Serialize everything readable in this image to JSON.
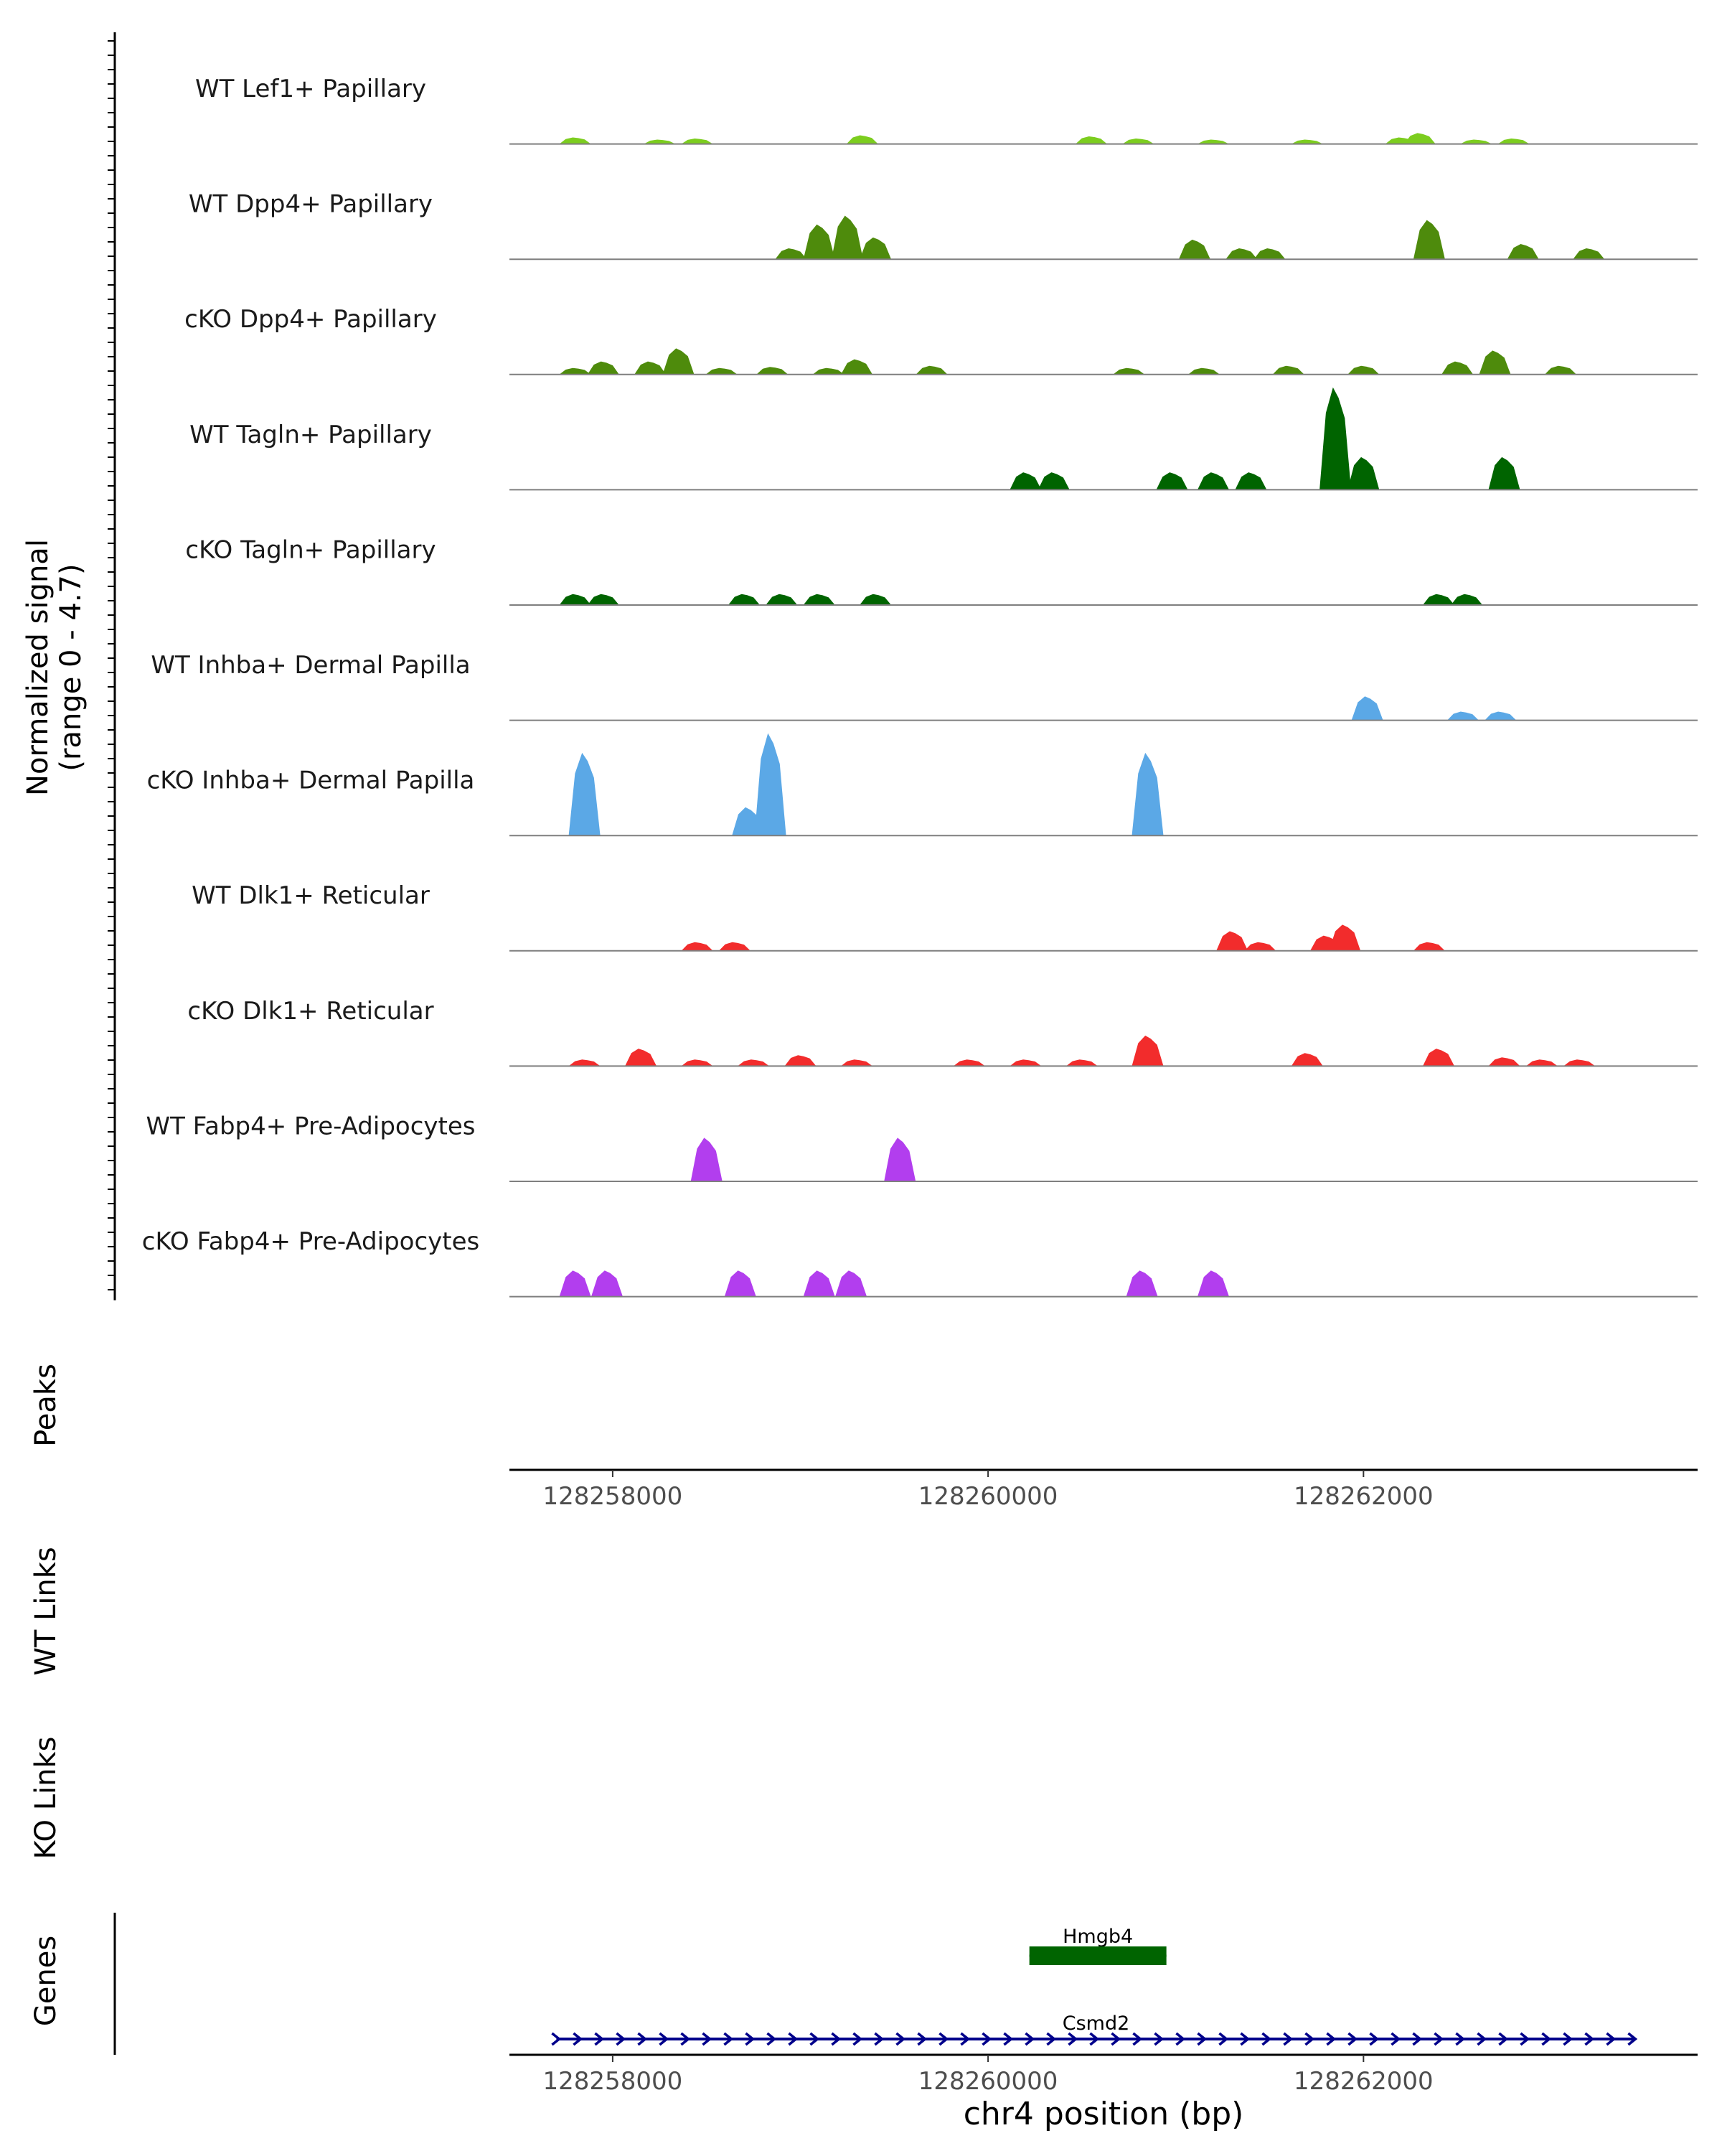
{
  "chart_data": {
    "type": "area",
    "title": "",
    "signal_axis_label": "Normalized signal",
    "signal_axis_range_label": "(range 0 - 4.7)",
    "signal_range": [
      0,
      4.7
    ],
    "xlabel": "chr4 position (bp)",
    "xlim": [
      128257450,
      128263780
    ],
    "x_ticks": [
      "128258000",
      "128260000",
      "128262000"
    ],
    "x_tick_values": [
      128258000,
      128260000,
      128262000
    ],
    "panel_labels": {
      "peaks": "Peaks",
      "wt_links": "WT Links",
      "ko_links": "KO Links",
      "genes": "Genes"
    },
    "tracks": [
      {
        "name": "WT Lef1+ Papillary",
        "color": "#7CCD1F",
        "peaks": [
          [
            128257800,
            0.3
          ],
          [
            128258250,
            0.2
          ],
          [
            128258450,
            0.25
          ],
          [
            128259330,
            0.4
          ],
          [
            128260550,
            0.35
          ],
          [
            128260800,
            0.25
          ],
          [
            128261200,
            0.2
          ],
          [
            128261700,
            0.2
          ],
          [
            128262200,
            0.3
          ],
          [
            128262300,
            0.5
          ],
          [
            128262600,
            0.2
          ],
          [
            128262800,
            0.25
          ]
        ]
      },
      {
        "name": "WT Dpp4+ Papillary",
        "color": "#4E8B0C",
        "peaks": [
          [
            128258950,
            0.5
          ],
          [
            128259100,
            1.6
          ],
          [
            128259250,
            2.0
          ],
          [
            128259400,
            1.0
          ],
          [
            128261100,
            0.9
          ],
          [
            128261350,
            0.5
          ],
          [
            128261500,
            0.5
          ],
          [
            128262350,
            1.8
          ],
          [
            128262850,
            0.7
          ],
          [
            128263200,
            0.5
          ]
        ]
      },
      {
        "name": "cKO Dpp4+ Papillary",
        "color": "#4E8B0C",
        "peaks": [
          [
            128257800,
            0.3
          ],
          [
            128257950,
            0.6
          ],
          [
            128258200,
            0.6
          ],
          [
            128258350,
            1.2
          ],
          [
            128258580,
            0.3
          ],
          [
            128258850,
            0.35
          ],
          [
            128259150,
            0.3
          ],
          [
            128259300,
            0.7
          ],
          [
            128259700,
            0.4
          ],
          [
            128260750,
            0.3
          ],
          [
            128261150,
            0.3
          ],
          [
            128261600,
            0.4
          ],
          [
            128262000,
            0.4
          ],
          [
            128262500,
            0.6
          ],
          [
            128262700,
            1.1
          ],
          [
            128263050,
            0.4
          ]
        ]
      },
      {
        "name": "WT Tagln+ Papillary",
        "color": "#006400",
        "peaks": [
          [
            128260200,
            0.8
          ],
          [
            128260350,
            0.8
          ],
          [
            128260980,
            0.8
          ],
          [
            128261200,
            0.8
          ],
          [
            128261400,
            0.8
          ],
          [
            128261850,
            4.7
          ],
          [
            128262000,
            1.5
          ],
          [
            128262750,
            1.5
          ]
        ]
      },
      {
        "name": "cKO Tagln+ Papillary",
        "color": "#006400",
        "peaks": [
          [
            128257800,
            0.5
          ],
          [
            128257950,
            0.5
          ],
          [
            128258700,
            0.5
          ],
          [
            128258900,
            0.5
          ],
          [
            128259100,
            0.5
          ],
          [
            128259400,
            0.5
          ],
          [
            128262400,
            0.5
          ],
          [
            128262550,
            0.5
          ]
        ]
      },
      {
        "name": "WT Inhba+ Dermal Papilla",
        "color": "#5BA8E6",
        "peaks": [
          [
            128262020,
            1.1
          ],
          [
            128262530,
            0.4
          ],
          [
            128262730,
            0.4
          ]
        ]
      },
      {
        "name": "cKO Inhba+ Dermal Papilla",
        "color": "#5BA8E6",
        "peaks": [
          [
            128257850,
            3.8
          ],
          [
            128258720,
            1.3
          ],
          [
            128258840,
            4.7
          ],
          [
            128260850,
            3.8
          ]
        ]
      },
      {
        "name": "WT Dlk1+ Reticular",
        "color": "#F22C2C",
        "peaks": [
          [
            128258450,
            0.4
          ],
          [
            128258650,
            0.4
          ],
          [
            128261300,
            0.9
          ],
          [
            128261450,
            0.4
          ],
          [
            128261800,
            0.7
          ],
          [
            128261900,
            1.2
          ],
          [
            128262350,
            0.4
          ]
        ]
      },
      {
        "name": "cKO Dlk1+ Reticular",
        "color": "#F22C2C",
        "peaks": [
          [
            128257850,
            0.3
          ],
          [
            128258150,
            0.8
          ],
          [
            128258450,
            0.3
          ],
          [
            128258750,
            0.3
          ],
          [
            128259000,
            0.5
          ],
          [
            128259300,
            0.3
          ],
          [
            128259900,
            0.3
          ],
          [
            128260200,
            0.3
          ],
          [
            128260500,
            0.3
          ],
          [
            128260850,
            1.4
          ],
          [
            128261700,
            0.6
          ],
          [
            128262400,
            0.8
          ],
          [
            128262750,
            0.4
          ],
          [
            128262950,
            0.3
          ],
          [
            128263150,
            0.3
          ]
        ]
      },
      {
        "name": "WT Fabp4+ Pre-Adipocytes",
        "color": "#B23EEE",
        "peaks": [
          [
            128258500,
            2.0
          ],
          [
            128259530,
            2.0
          ]
        ]
      },
      {
        "name": "cKO Fabp4+ Pre-Adipocytes",
        "color": "#B23EEE",
        "peaks": [
          [
            128257800,
            1.2
          ],
          [
            128257970,
            1.2
          ],
          [
            128258680,
            1.2
          ],
          [
            128259100,
            1.2
          ],
          [
            128259270,
            1.2
          ],
          [
            128260820,
            1.2
          ],
          [
            128261200,
            1.2
          ]
        ]
      }
    ],
    "genes": [
      {
        "name": "Hmgb4",
        "start": 128260220,
        "end": 128260950,
        "strand": "+",
        "color": "#006400"
      },
      {
        "name": "Csmd2",
        "start": 128257700,
        "end": 128263450,
        "strand": "+",
        "color": "#00008B"
      }
    ]
  }
}
